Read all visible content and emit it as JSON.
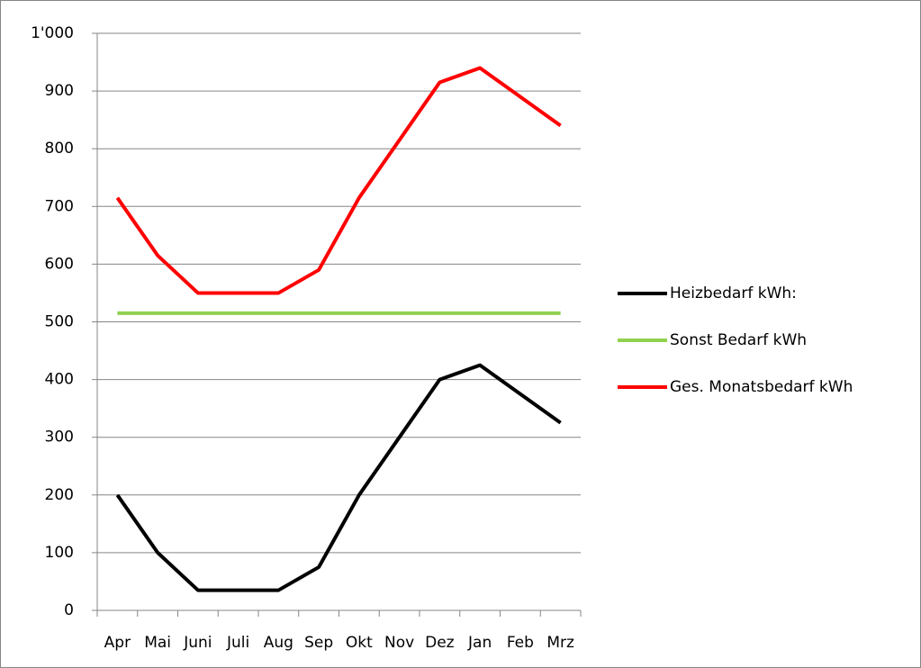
{
  "chart_data": {
    "type": "line",
    "categories": [
      "Apr",
      "Mai",
      "Juni",
      "Juli",
      "Aug",
      "Sep",
      "Okt",
      "Nov",
      "Dez",
      "Jan",
      "Feb",
      "Mrz"
    ],
    "series": [
      {
        "name": "Heizbedarf kWh:",
        "color": "#000000",
        "values": [
          200,
          100,
          35,
          35,
          35,
          75,
          200,
          300,
          400,
          425,
          375,
          325
        ]
      },
      {
        "name": "Sonst Bedarf kWh",
        "color": "#92d050",
        "values": [
          515,
          515,
          515,
          515,
          515,
          515,
          515,
          515,
          515,
          515,
          515,
          515
        ]
      },
      {
        "name": "Ges. Monatsbedarf kWh",
        "color": "#ff0000",
        "values": [
          715,
          615,
          550,
          550,
          550,
          590,
          715,
          815,
          915,
          940,
          890,
          840
        ]
      }
    ],
    "ylim": [
      0,
      1000
    ],
    "yticks": [
      0,
      100,
      200,
      300,
      400,
      500,
      600,
      700,
      800,
      900,
      {
        "value": 1000,
        "label": "1'000"
      }
    ],
    "grid": true,
    "legend": "right"
  }
}
